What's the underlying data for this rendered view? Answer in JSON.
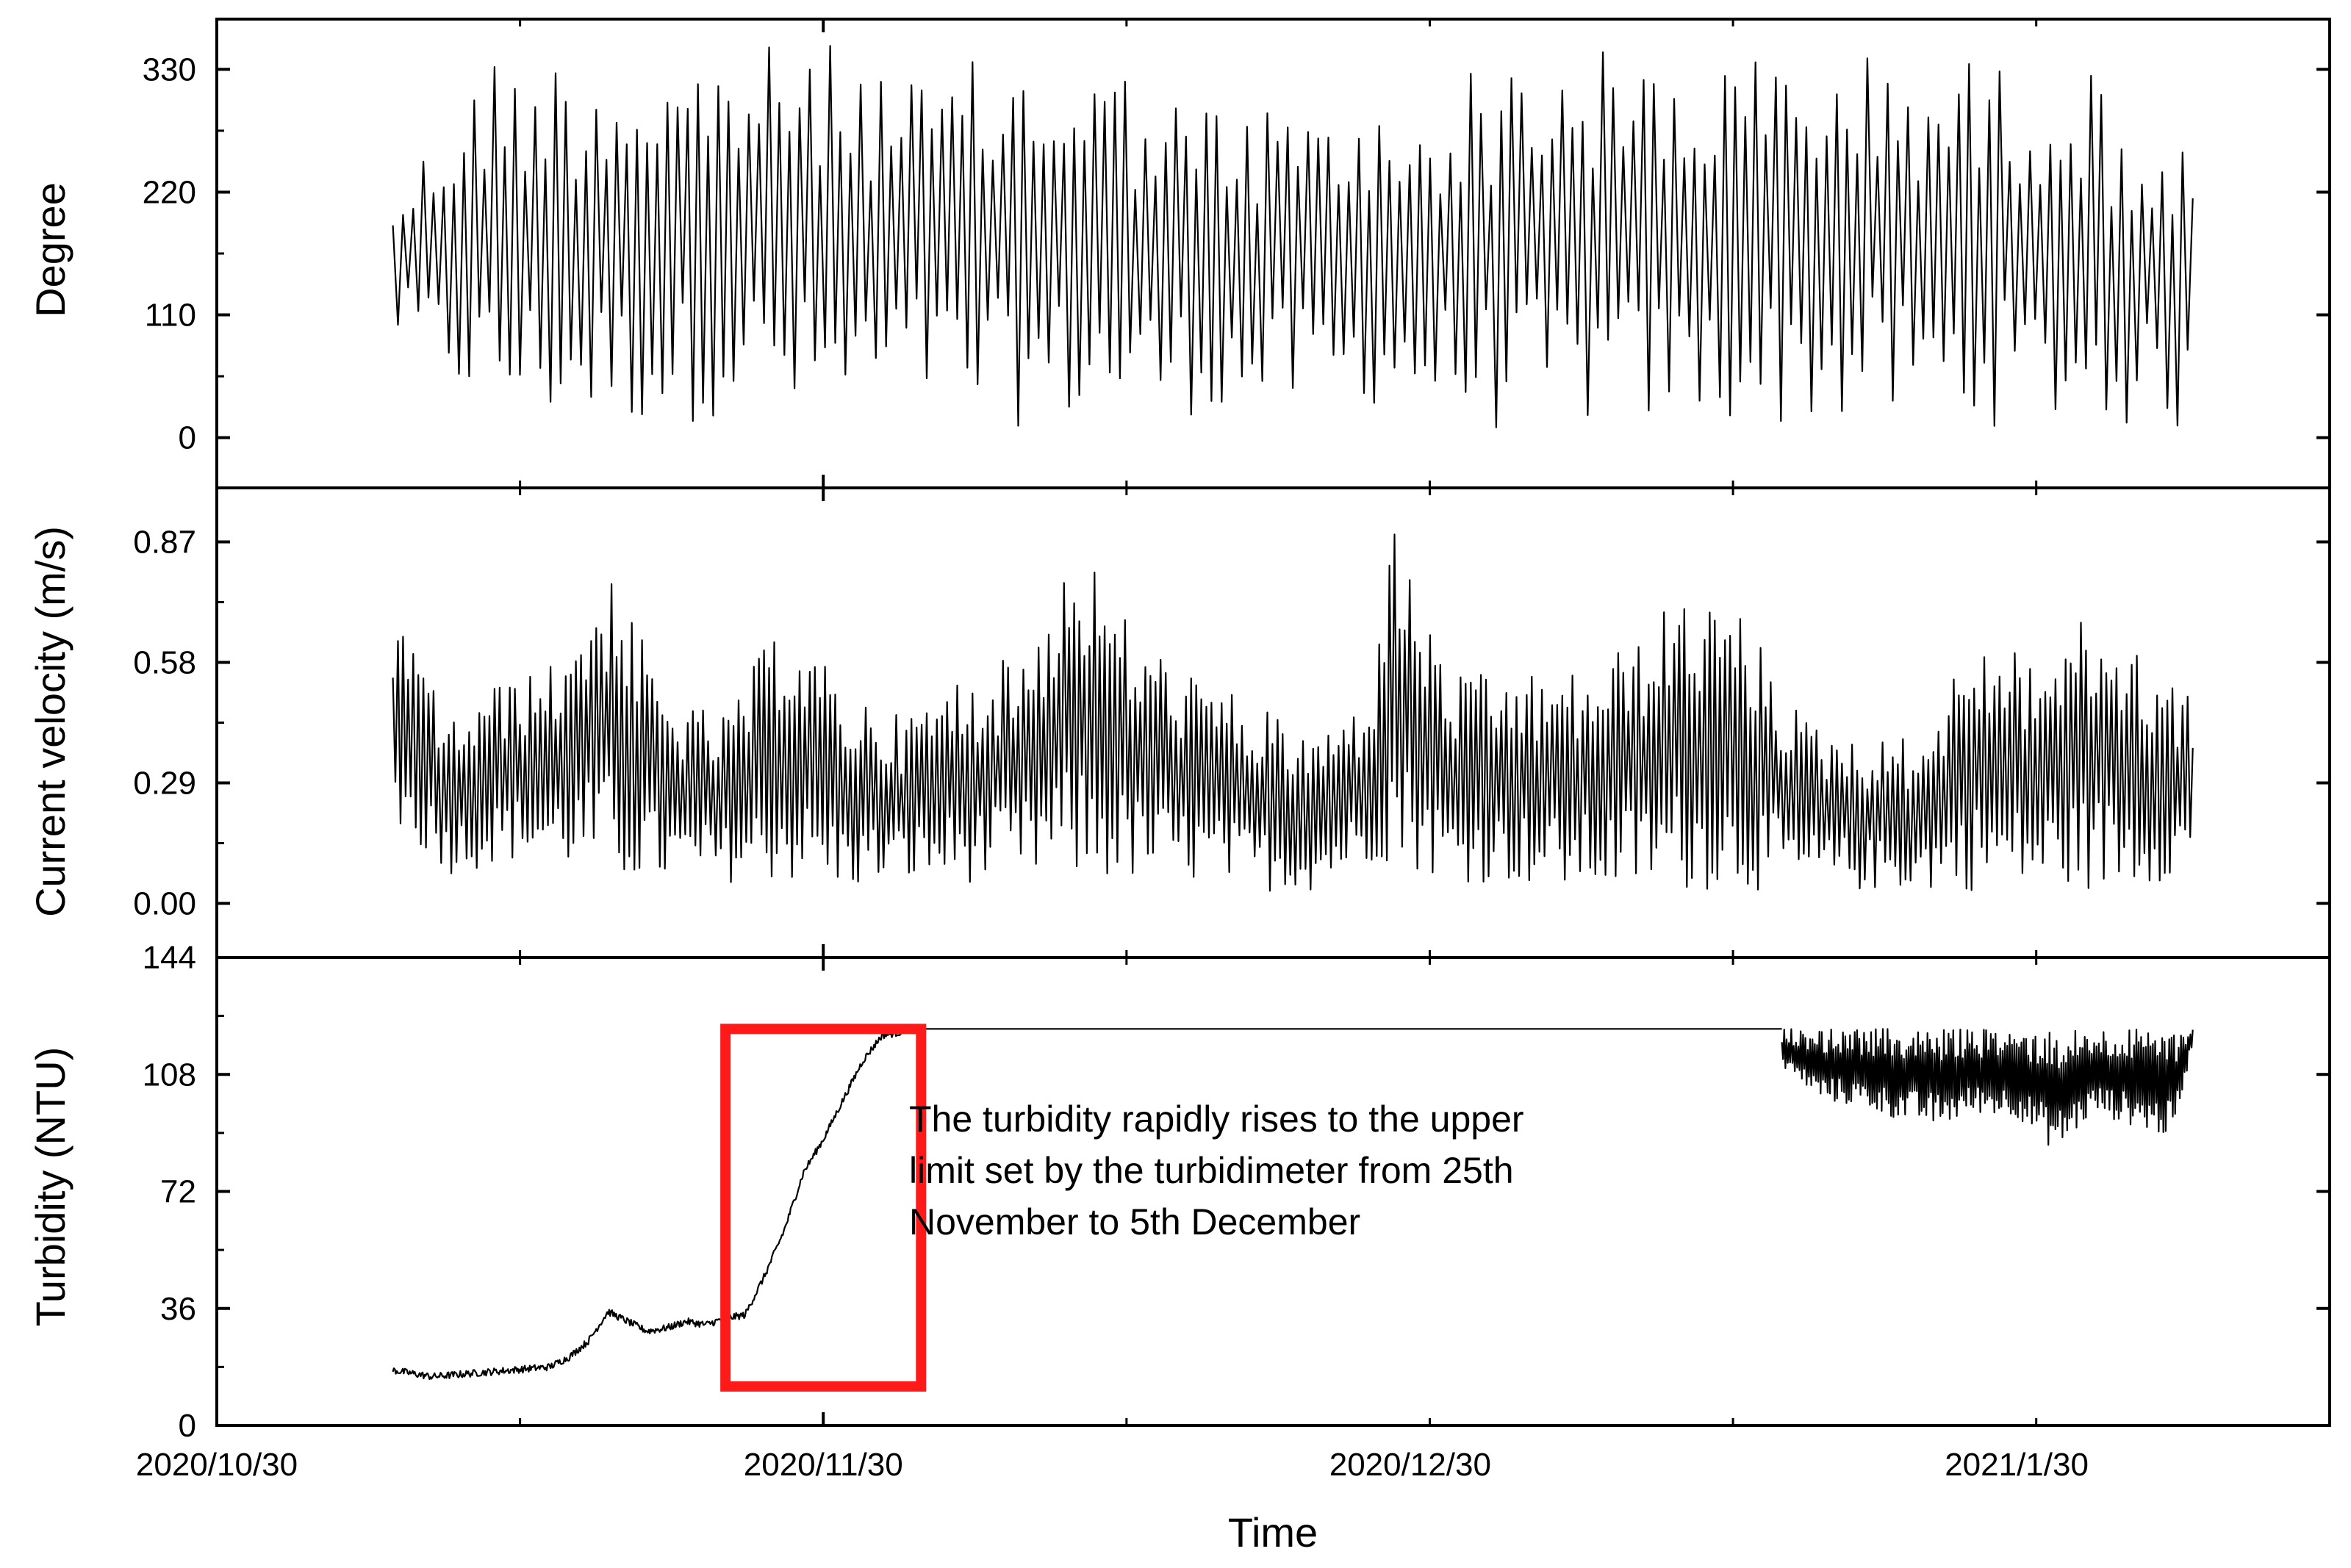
{
  "chart_data": {
    "type": "line",
    "xlabel": "Time",
    "x_tick_labels": [
      "2020/10/30",
      "2020/11/30",
      "2020/12/30",
      "2021/1/30"
    ],
    "x_tick_dates": [
      "2020-10-30",
      "2020-11-30",
      "2020-12-30",
      "2021-01-30"
    ],
    "xlim": [
      "2020-10-30",
      "2021-02-15"
    ],
    "data_start": "2020-11-08",
    "data_end": "2021-02-08",
    "grid": false,
    "legend": "none",
    "line_color": "#000000",
    "panels": [
      {
        "name": "degree",
        "ylabel": "Degree",
        "ylim": [
          -45,
          375
        ],
        "yticks": [
          0,
          110,
          220,
          330
        ],
        "ytick_labels": [
          "0",
          "110",
          "220",
          "330"
        ],
        "series": [
          {
            "description_shape": "sawtooth tidal direction",
            "x": [
              "2020-11-08",
              "2020-11-13",
              "2020-11-18",
              "2020-11-23",
              "2020-11-26",
              "2020-11-29",
              "2020-12-02",
              "2020-12-05",
              "2020-12-08",
              "2020-12-11",
              "2020-12-14",
              "2020-12-19",
              "2020-12-24",
              "2020-12-29",
              "2021-01-03",
              "2021-01-08",
              "2021-01-13",
              "2021-01-18",
              "2021-01-23",
              "2021-01-28",
              "2021-02-02",
              "2021-02-08"
            ],
            "y_max": [
              220,
              345,
              345,
              345,
              350,
              355,
              350,
              320,
              340,
              340,
              345,
              300,
              300,
              290,
              340,
              350,
              340,
              345,
              345,
              340,
              340,
              250
            ],
            "y_min": [
              90,
              15,
              10,
              10,
              30,
              5,
              10,
              30,
              10,
              10,
              15,
              20,
              20,
              30,
              5,
              10,
              10,
              10,
              10,
              10,
              10,
              5
            ]
          }
        ]
      },
      {
        "name": "current-velocity",
        "ylabel": "Current velocity (m/s)",
        "ylim": [
          -0.13,
          1.0
        ],
        "yticks": [
          0.0,
          0.29,
          0.58,
          0.87
        ],
        "ytick_labels": [
          "0.00",
          "0.29",
          "0.58",
          "0.87"
        ],
        "series": [
          {
            "x": [
              "2020-11-08",
              "2020-11-11",
              "2020-11-14",
              "2020-11-16",
              "2020-11-19",
              "2020-11-22",
              "2020-11-25",
              "2020-11-28",
              "2020-12-01",
              "2020-12-04",
              "2020-12-07",
              "2020-12-10",
              "2020-12-13",
              "2020-12-16",
              "2020-12-19",
              "2020-12-22",
              "2020-12-25",
              "2020-12-28",
              "2020-12-29",
              "2021-01-01",
              "2021-01-04",
              "2021-01-07",
              "2021-01-10",
              "2021-01-13",
              "2021-01-16",
              "2021-01-19",
              "2021-01-22",
              "2021-01-25",
              "2021-01-28",
              "2021-01-31",
              "2021-02-03",
              "2021-02-06",
              "2021-02-08"
            ],
            "y_max": [
              0.7,
              0.45,
              0.55,
              0.57,
              0.82,
              0.5,
              0.45,
              0.7,
              0.52,
              0.45,
              0.55,
              0.6,
              0.88,
              0.65,
              0.55,
              0.48,
              0.4,
              0.5,
              0.93,
              0.55,
              0.55,
              0.55,
              0.62,
              0.75,
              0.7,
              0.45,
              0.4,
              0.4,
              0.65,
              0.6,
              0.7,
              0.58,
              0.5
            ],
            "y_min": [
              0.18,
              0.07,
              0.1,
              0.1,
              0.05,
              0.05,
              0.05,
              0.05,
              0.03,
              0.05,
              0.05,
              0.05,
              0.05,
              0.05,
              0.05,
              0.03,
              0.03,
              0.1,
              0.1,
              0.05,
              0.05,
              0.03,
              0.03,
              0.03,
              0.03,
              0.03,
              0.03,
              0.03,
              0.03,
              0.03,
              0.03,
              0.05,
              0.08
            ]
          }
        ]
      },
      {
        "name": "turbidity",
        "ylabel": "Turbidity (NTU)",
        "ylim": [
          0,
          144
        ],
        "yticks": [
          0,
          36,
          72,
          108,
          144
        ],
        "ytick_labels": [
          "0",
          "36",
          "72",
          "108",
          "144"
        ],
        "series": [
          {
            "x": [
              "2020-11-08",
              "2020-11-10",
              "2020-11-12",
              "2020-11-14",
              "2020-11-16",
              "2020-11-17",
              "2020-11-18",
              "2020-11-19",
              "2020-11-20",
              "2020-11-21",
              "2020-11-22",
              "2020-11-23",
              "2020-11-24",
              "2020-11-25",
              "2020-11-26",
              "2020-11-27",
              "2020-11-28",
              "2020-11-29",
              "2020-11-30",
              "2020-12-01",
              "2020-12-02",
              "2020-12-03",
              "2020-12-05",
              "2021-01-18"
            ],
            "y": [
              17,
              15,
              16,
              17,
              18,
              21,
              26,
              35,
              32,
              29,
              30,
              32,
              31,
              33,
              34,
              46,
              60,
              78,
              88,
              100,
              112,
              120,
              122,
              122
            ]
          },
          {
            "x": [
              "2021-01-18",
              "2021-01-20",
              "2021-01-22",
              "2021-01-24",
              "2021-01-26",
              "2021-01-28",
              "2021-01-30",
              "2021-02-01",
              "2021-02-03",
              "2021-02-05",
              "2021-02-07",
              "2021-02-08"
            ],
            "y_max": [
              122,
              122,
              122,
              122,
              122,
              122,
              122,
              122,
              122,
              122,
              122,
              122
            ],
            "y_min": [
              110,
              100,
              98,
              94,
              92,
              96,
              95,
              84,
              96,
              92,
              88,
              118
            ]
          }
        ],
        "annotation": {
          "text_lines": [
            "The turbidity rapidly rises to the upper",
            "limit set by the turbidimeter from 25th",
            "November to 5th December"
          ],
          "highlight_x_range": [
            "2020-11-25",
            "2020-12-05"
          ],
          "highlight_y_range": [
            12,
            122
          ],
          "highlight_color": "#ff1a1a"
        }
      }
    ]
  }
}
